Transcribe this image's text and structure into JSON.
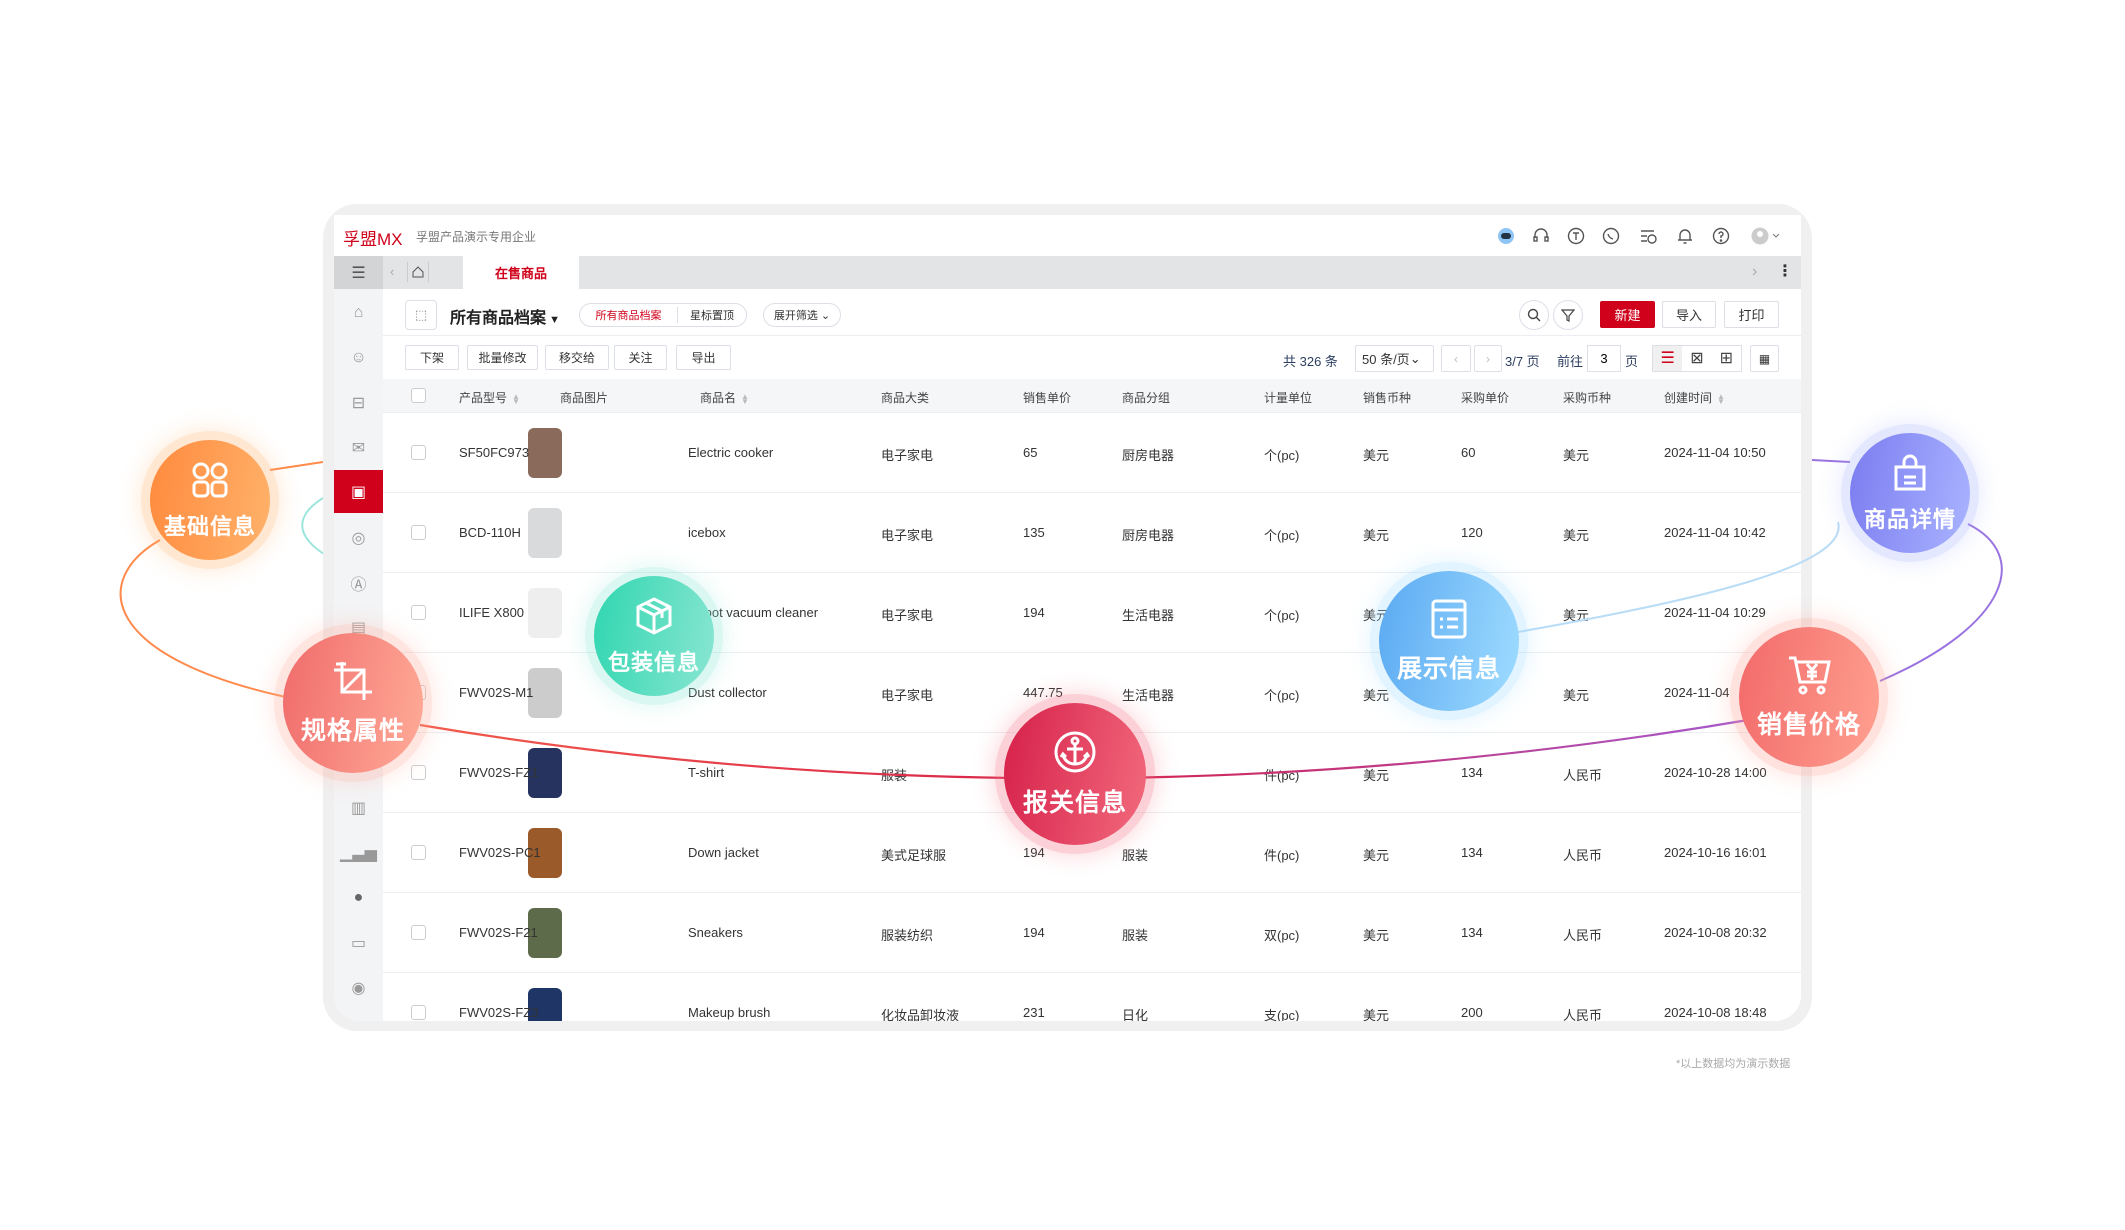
{
  "app": {
    "logo": "孚盟MX",
    "company": "孚盟产品演示专用企业",
    "active_tab": "在售商品"
  },
  "header_icons": [
    "ai-assistant-icon",
    "headset-icon",
    "t-circle-icon",
    "whatsapp-icon",
    "schedule-list-icon",
    "bell-icon",
    "help-icon",
    "avatar-icon"
  ],
  "toolbar": {
    "title": "所有商品档案",
    "views": [
      "所有商品档案",
      "星标置顶"
    ],
    "expand_filter": "展开筛选",
    "new": "新建",
    "import": "导入",
    "print": "打印"
  },
  "actions": [
    "下架",
    "批量修改",
    "移交给",
    "关注",
    "导出"
  ],
  "pagination": {
    "total": "共 326 条",
    "page_size": "50 条/页",
    "page_info": "3/7 页",
    "goto": "前往",
    "goto_value": "3",
    "page_suffix": "页"
  },
  "columns": [
    "产品型号",
    "商品图片",
    "商品名",
    "商品大类",
    "销售单价",
    "商品分组",
    "计量单位",
    "销售币种",
    "采购单价",
    "采购币种",
    "创建时间"
  ],
  "rows": [
    {
      "model": "SF50FC973",
      "name": "Electric cooker",
      "category": "电子家电",
      "price": "65",
      "group": "厨房电器",
      "unit": "个(pc)",
      "currency": "美元",
      "cost": "60",
      "cost_currency": "美元",
      "created": "2024-11-04 10:50",
      "img": "#8a6a5a"
    },
    {
      "model": "BCD-110H",
      "name": "icebox",
      "category": "电子家电",
      "price": "135",
      "group": "厨房电器",
      "unit": "个(pc)",
      "currency": "美元",
      "cost": "120",
      "cost_currency": "美元",
      "created": "2024-11-04 10:42",
      "img": "#d8dadc"
    },
    {
      "model": "ILIFE X800",
      "name": "Robot vacuum cleaner",
      "category": "电子家电",
      "price": "194",
      "group": "生活电器",
      "unit": "个(pc)",
      "currency": "美元",
      "cost": "",
      "cost_currency": "美元",
      "created": "2024-11-04 10:29",
      "img": "#eeeeee"
    },
    {
      "model": "FWV02S-M1",
      "name": "Dust collector",
      "category": "电子家电",
      "price": "447.75",
      "group": "生活电器",
      "unit": "个(pc)",
      "currency": "美元",
      "cost": "",
      "cost_currency": "美元",
      "created": "2024-11-04",
      "img": "#cccccc"
    },
    {
      "model": "FWV02S-FZ1",
      "name": "T-shirt",
      "category": "服装",
      "price": "",
      "group": "",
      "unit": "件(pc)",
      "currency": "美元",
      "cost": "134",
      "cost_currency": "人民币",
      "created": "2024-10-28 14:00",
      "img": "#26335e"
    },
    {
      "model": "FWV02S-PC1",
      "name": "Down jacket",
      "category": "美式足球服",
      "price": "194",
      "group": "服装",
      "unit": "件(pc)",
      "currency": "美元",
      "cost": "134",
      "cost_currency": "人民币",
      "created": "2024-10-16 16:01",
      "img": "#9a5a2a"
    },
    {
      "model": "FWV02S-F21",
      "name": "Sneakers",
      "category": "服装纺织",
      "price": "194",
      "group": "服装",
      "unit": "双(pc)",
      "currency": "美元",
      "cost": "134",
      "cost_currency": "人民币",
      "created": "2024-10-08 20:32",
      "img": "#5d6b4a"
    },
    {
      "model": "FWV02S-FZ3",
      "name": "Makeup brush",
      "category": "化妆品卸妆液",
      "price": "231",
      "group": "日化",
      "unit": "支(pc)",
      "currency": "美元",
      "cost": "200",
      "cost_currency": "人民币",
      "created": "2024-10-08 18:48",
      "img": "#1f3566"
    }
  ],
  "bubbles": [
    {
      "label": "基础信息",
      "icon": "grid-icon",
      "colors": [
        "#ff8a3d",
        "#ffb26b"
      ]
    },
    {
      "label": "商品详情",
      "icon": "shopping-bag-icon",
      "colors": [
        "#7b7cf0",
        "#a9b4ff"
      ]
    },
    {
      "label": "包装信息",
      "icon": "package-icon",
      "colors": [
        "#2fd6b0",
        "#8ae6d2"
      ]
    },
    {
      "label": "展示信息",
      "icon": "display-list-icon",
      "colors": [
        "#5aa9f2",
        "#9fdcff"
      ]
    },
    {
      "label": "规格属性",
      "icon": "crop-icon",
      "colors": [
        "#f06b6b",
        "#ffab98"
      ]
    },
    {
      "label": "销售价格",
      "icon": "cart-yen-icon",
      "colors": [
        "#f26a6a",
        "#ffa090"
      ]
    },
    {
      "label": "报关信息",
      "icon": "anchor-icon",
      "colors": [
        "#d6204a",
        "#f26a7c"
      ]
    }
  ],
  "footnote": "*以上数据均为演示数据",
  "accent": "#d0021b"
}
